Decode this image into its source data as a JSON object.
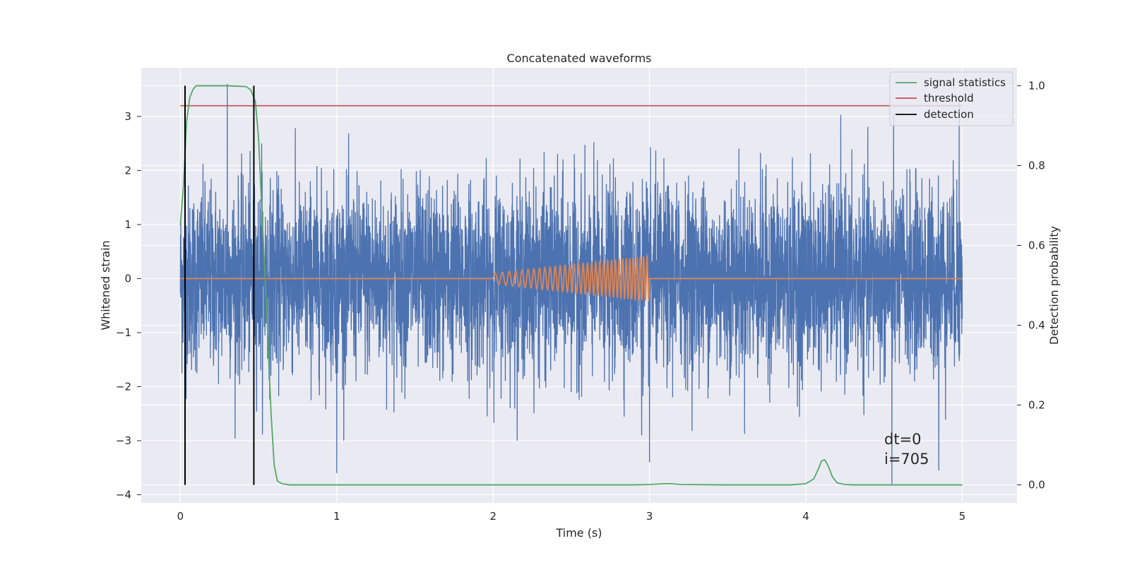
{
  "chart_data": {
    "type": "line",
    "title": "Concatenated waveforms",
    "xlabel": "Time (s)",
    "ylabel": "Whitened strain",
    "y2label": "Detection probability",
    "xlim": [
      -0.25,
      5.35
    ],
    "ylim": [
      -4.15,
      3.9
    ],
    "y2lim": [
      -0.045,
      1.045
    ],
    "x_ticks": [
      "0",
      "1",
      "2",
      "3",
      "4",
      "5"
    ],
    "y_ticks": [
      "−4",
      "−3",
      "−2",
      "−1",
      "0",
      "1",
      "2",
      "3"
    ],
    "y2_ticks": [
      "0.0",
      "0.2",
      "0.4",
      "0.6",
      "0.8",
      "1.0"
    ],
    "grid": true,
    "legend_position": "top-right",
    "annotation_lines": [
      "dt=0",
      "i=705"
    ],
    "colors": {
      "background": "#eaeaf2",
      "strain": "#4c72b0",
      "template": "#dd8452",
      "signal_statistics": "#55a868",
      "threshold": "#c44e52",
      "detection": "#000000",
      "grid": "#ffffff"
    },
    "series": [
      {
        "name": "",
        "role": "strain",
        "axis": "left",
        "description_x_range": [
          0,
          5
        ],
        "noise_std": 0.85,
        "extreme_points": [
          [
            0.3,
            3.6
          ],
          [
            0.52,
            2.5
          ],
          [
            1.0,
            -3.6
          ],
          [
            2.95,
            -2.9
          ],
          [
            3.0,
            -3.4
          ],
          [
            4.55,
            -3.8
          ],
          [
            4.85,
            -3.55
          ],
          [
            4.98,
            3.3
          ]
        ]
      },
      {
        "name": "",
        "role": "template",
        "axis": "left",
        "chirp_start": 2.0,
        "chirp_end": 3.0,
        "amplitude_start": 0.1,
        "amplitude_end": 0.42,
        "cycles": 34
      },
      {
        "name": "signal statistics",
        "role": "signal_statistics",
        "axis": "right",
        "x": [
          0,
          0.02,
          0.04,
          0.06,
          0.08,
          0.1,
          0.15,
          0.3,
          0.42,
          0.45,
          0.48,
          0.5,
          0.52,
          0.55,
          0.58,
          0.6,
          0.62,
          0.65,
          0.7,
          1.0,
          2.0,
          2.9,
          3.0,
          3.1,
          3.13,
          3.2,
          3.5,
          3.9,
          4.0,
          4.05,
          4.08,
          4.1,
          4.12,
          4.14,
          4.17,
          4.2,
          4.25,
          4.3,
          5.0
        ],
        "y": [
          0.65,
          0.75,
          0.91,
          0.97,
          0.99,
          1.0,
          1.0,
          1.0,
          0.998,
          0.99,
          0.96,
          0.87,
          0.7,
          0.45,
          0.18,
          0.05,
          0.01,
          0.003,
          0.0,
          0.0,
          0.0,
          0.0,
          0.001,
          0.003,
          0.003,
          0.001,
          0.0,
          0.0,
          0.003,
          0.015,
          0.04,
          0.06,
          0.063,
          0.05,
          0.02,
          0.005,
          0.001,
          0.0,
          0.0
        ]
      },
      {
        "name": "threshold",
        "role": "threshold",
        "axis": "right",
        "x": [
          0,
          5
        ],
        "y": [
          0.95,
          0.95
        ]
      },
      {
        "name": "detection",
        "role": "detection",
        "axis": "right",
        "x_positions": [
          0.03,
          0.47
        ],
        "y_range": [
          0,
          1
        ]
      }
    ]
  }
}
